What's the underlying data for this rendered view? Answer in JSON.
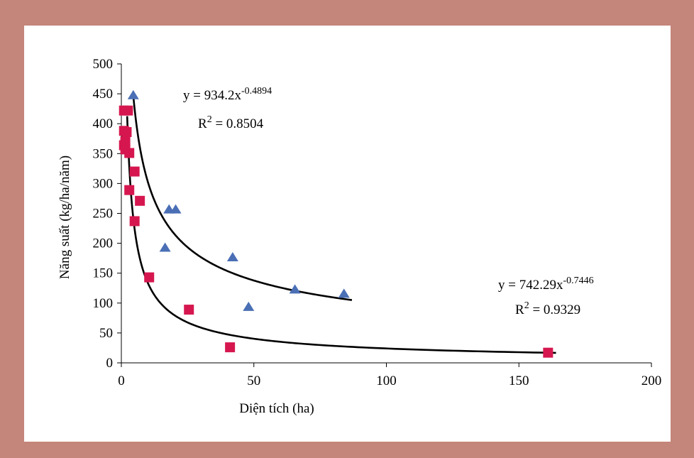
{
  "chart_data": {
    "type": "scatter",
    "xlabel": "Diện tích (ha)",
    "ylabel": "Năng suất (kg/ha/năm)",
    "xlim": [
      0,
      200
    ],
    "ylim": [
      0,
      500
    ],
    "x_ticks": [
      0,
      50,
      100,
      150,
      200
    ],
    "y_ticks": [
      0,
      50,
      100,
      150,
      200,
      250,
      300,
      350,
      400,
      450,
      500
    ],
    "grid": false,
    "legend": "none",
    "series": [
      {
        "marker": "triangle",
        "color": "#4a6fb5",
        "points": [
          [
            4.5,
            448
          ],
          [
            18,
            257
          ],
          [
            20.5,
            257
          ],
          [
            16.5,
            193
          ],
          [
            42,
            177
          ],
          [
            65.5,
            123
          ],
          [
            84,
            116
          ],
          [
            48,
            94
          ]
        ],
        "trendline": {
          "a": 934.2,
          "b": -0.4894,
          "x_range": [
            4.5,
            87
          ],
          "equation_prefix": "y = 934.2x",
          "exponent": "-0.4894",
          "r2_prefix": "R",
          "r2_sup": "2",
          "r2_value": " = 0.8504"
        }
      },
      {
        "marker": "square",
        "color": "#d6174f",
        "points": [
          [
            1,
            422
          ],
          [
            2.5,
            422
          ],
          [
            1,
            388
          ],
          [
            2,
            386
          ],
          [
            1.5,
            370
          ],
          [
            1,
            364
          ],
          [
            1.5,
            357
          ],
          [
            3,
            351
          ],
          [
            5,
            320
          ],
          [
            3,
            289
          ],
          [
            7,
            271
          ],
          [
            5,
            237
          ],
          [
            10.5,
            143
          ],
          [
            25.5,
            89
          ],
          [
            41,
            26
          ],
          [
            161,
            17
          ]
        ],
        "trendline": {
          "a": 742.29,
          "b": -0.7446,
          "x_range": [
            2.2,
            164
          ],
          "equation_prefix": "y = 742.29x",
          "exponent": "-0.7446",
          "r2_prefix": "R",
          "r2_sup": "2",
          "r2_value": " = 0.9329"
        }
      }
    ]
  }
}
